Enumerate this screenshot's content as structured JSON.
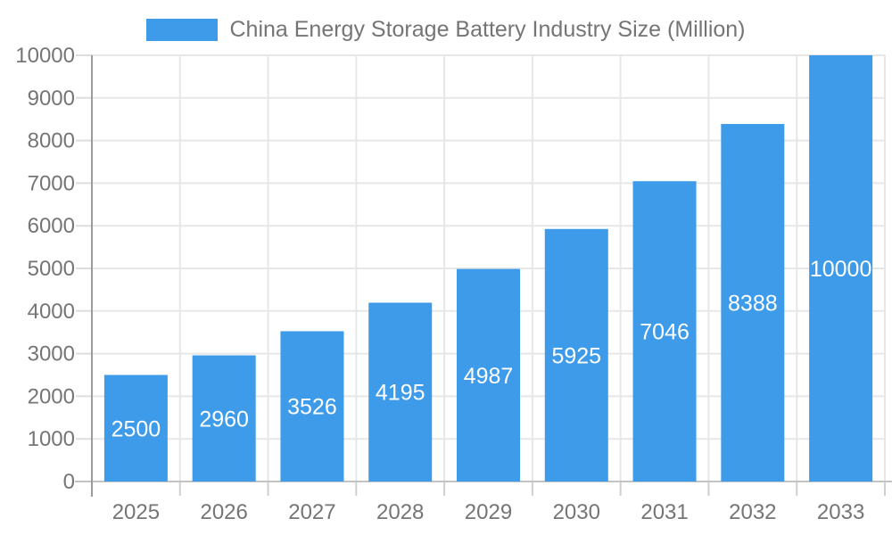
{
  "legend": {
    "label": "China Energy Storage Battery Industry Size (Million)"
  },
  "chart_data": {
    "type": "bar",
    "title": "China Energy Storage Battery Industry Size (Million)",
    "series_name": "China Energy Storage Battery Industry Size (Million)",
    "categories": [
      "2025",
      "2026",
      "2027",
      "2028",
      "2029",
      "2030",
      "2031",
      "2032",
      "2033"
    ],
    "values": [
      2500,
      2960,
      3526,
      4195,
      4987,
      5925,
      7046,
      8388,
      10000
    ],
    "value_labels": [
      "2500",
      "2960",
      "3526",
      "4195",
      "4987",
      "5925",
      "7046",
      "8388",
      "10000"
    ],
    "y_ticks": [
      0,
      1000,
      2000,
      3000,
      4000,
      5000,
      6000,
      7000,
      8000,
      9000,
      10000
    ],
    "ylim": [
      0,
      10000
    ],
    "xlabel": "",
    "ylabel": "",
    "grid": true,
    "legend_position": "top",
    "value_label_position": "inside-center",
    "colors": {
      "bar": "#3D9BE9",
      "value_label": "#FFFFFF",
      "tick_label": "#757575",
      "legend_text": "#757575",
      "gridline": "#E7E7E7",
      "x_axis_line": "#C3C3C3",
      "y_axis_line": "#9B9B9B",
      "x_tick": "#CFCFCF",
      "y_tick": "#DDDDDD"
    }
  }
}
